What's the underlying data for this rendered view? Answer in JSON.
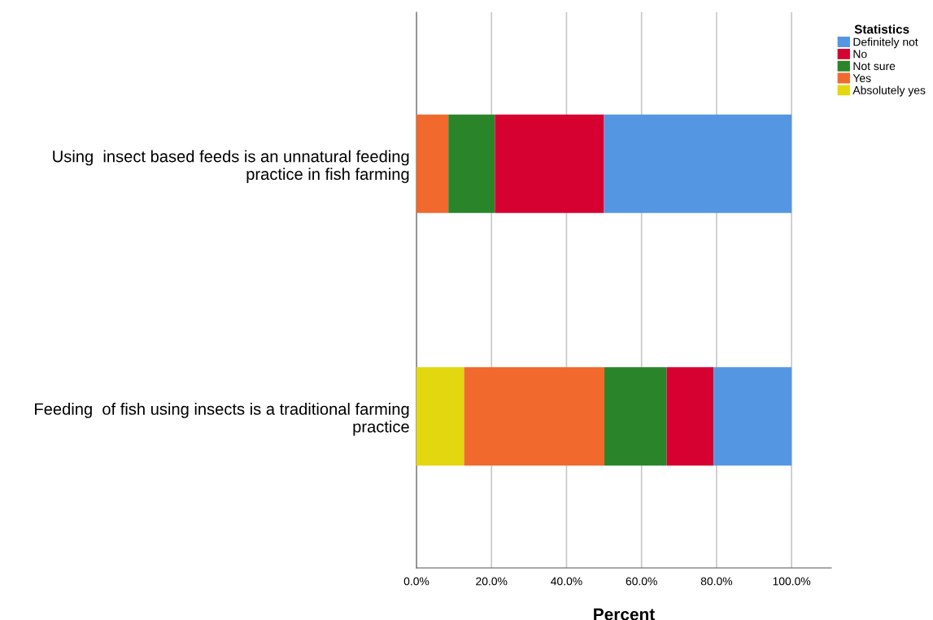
{
  "chart_data": {
    "type": "bar",
    "orientation": "horizontal",
    "stacked": true,
    "categories": [
      "Using  insect based feeds is an unnatural feeding\npractice in fish farming",
      "Feeding  of fish using insects is a traditional farming\npractice"
    ],
    "series": [
      {
        "name": "Absolutely yes",
        "color": "#e3d710",
        "values": [
          0,
          12.7
        ]
      },
      {
        "name": "Yes",
        "color": "#f1692c",
        "values": [
          8.5,
          37.4
        ]
      },
      {
        "name": "Not sure",
        "color": "#2a852a",
        "values": [
          12.4,
          16.6
        ]
      },
      {
        "name": "No",
        "color": "#d60031",
        "values": [
          29.1,
          12.5
        ]
      },
      {
        "name": "Definitely not",
        "color": "#5596e3",
        "values": [
          50.0,
          20.8
        ]
      }
    ],
    "xlabel": "Percent",
    "legend_title": "Statistics",
    "legend": "top right",
    "xlim": [
      0,
      110.6
    ],
    "xticks": [
      {
        "value": 0,
        "label": "0.0%"
      },
      {
        "value": 20,
        "label": "20.0%"
      },
      {
        "value": 40,
        "label": "40.0%"
      },
      {
        "value": 60,
        "label": "60.0%"
      },
      {
        "value": 80,
        "label": "80.0%"
      },
      {
        "value": 100,
        "label": "100.0%"
      }
    ],
    "grid": "x"
  }
}
